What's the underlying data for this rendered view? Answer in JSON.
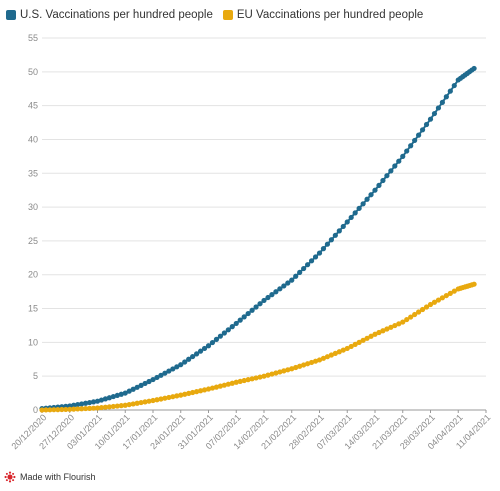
{
  "chart_data": {
    "type": "line",
    "title": "",
    "xlabel": "",
    "ylabel": "",
    "ylim": [
      0,
      55
    ],
    "yticks": [
      "0",
      "5",
      "10",
      "15",
      "20",
      "25",
      "30",
      "35",
      "40",
      "45",
      "50",
      "55"
    ],
    "xticks": [
      "20/12/2020",
      "27/12/2020",
      "03/01/2021",
      "10/01/2021",
      "17/01/2021",
      "24/01/2021",
      "31/01/2021",
      "07/02/2021",
      "14/02/2021",
      "21/02/2021",
      "28/02/2021",
      "07/03/2021",
      "14/03/2021",
      "21/03/2021",
      "28/03/2021",
      "04/04/2021",
      "11/04/2021"
    ],
    "xlim": [
      "2020-12-20",
      "2021-04-11"
    ],
    "grid": "horizontal",
    "legend": "top-left",
    "x": [
      "2020-12-20",
      "2020-12-27",
      "2021-01-03",
      "2021-01-10",
      "2021-01-17",
      "2021-01-24",
      "2021-01-31",
      "2021-02-07",
      "2021-02-14",
      "2021-02-21",
      "2021-02-28",
      "2021-03-07",
      "2021-03-14",
      "2021-03-21",
      "2021-03-28",
      "2021-04-04",
      "2021-04-08"
    ],
    "series": [
      {
        "name": "U.S. Vaccinations per hundred people",
        "color": "#1f6a8e",
        "values": [
          0.2,
          0.6,
          1.3,
          2.5,
          4.5,
          6.7,
          9.5,
          12.8,
          16.2,
          19.2,
          23.2,
          27.8,
          32.5,
          37.5,
          43.0,
          48.8,
          50.5
        ]
      },
      {
        "name": "EU Vaccinations per hundred people",
        "color": "#e8a90f",
        "values": [
          0.0,
          0.1,
          0.3,
          0.7,
          1.4,
          2.2,
          3.1,
          4.1,
          5.0,
          6.1,
          7.4,
          9.1,
          11.2,
          13.0,
          15.6,
          17.9,
          18.6
        ]
      }
    ]
  },
  "footer": {
    "label": "Made with Flourish",
    "icon": "flourish-icon"
  }
}
